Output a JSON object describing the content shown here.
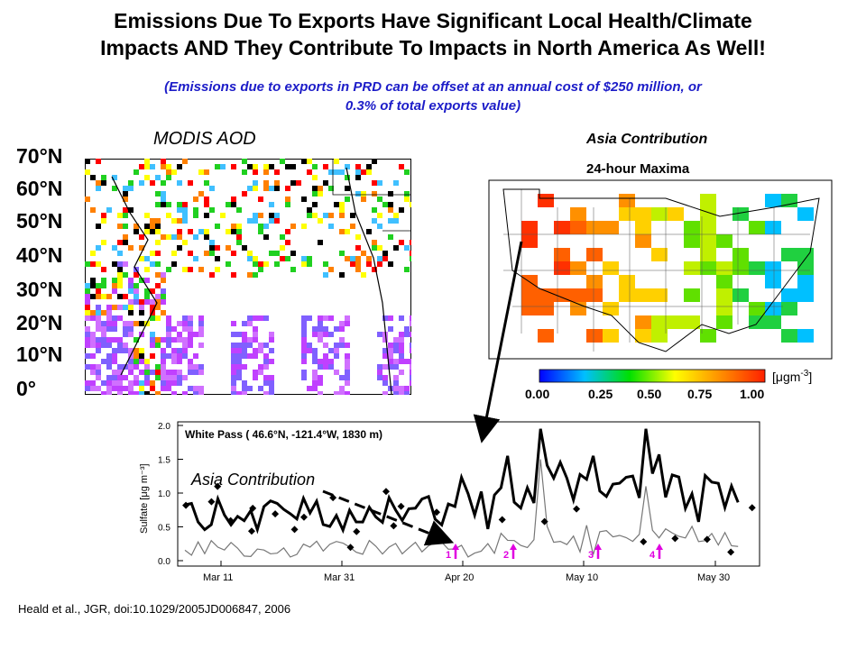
{
  "slide": {
    "title_line1": "Emissions Due To Exports Have Significant Local Health/Climate",
    "title_line2": "Impacts AND They  Contribute To Impacts in North America As Well!",
    "subtitle_line1": "(Emissions due to exports in PRD can be offset at an annual cost of $250 million, or",
    "subtitle_line2": "0.3% of total exports value)",
    "citation": "Heald et al., JGR, doi:10.1029/2005JD006847, 2006"
  },
  "modis_panel": {
    "label": "MODIS AOD",
    "latitude_labels": [
      "70°N",
      "60°N",
      "50°N",
      "40°N",
      "30°N",
      "20°N",
      "10°N",
      "0°"
    ]
  },
  "us_map_panel": {
    "label": "Asia Contribution",
    "map_title": "24-hour Maxima",
    "colorbar_ticks": [
      "0.00",
      "0.25",
      "0.50",
      "0.75",
      "1.00"
    ],
    "unit_prefix": "[",
    "unit_text": "μgm",
    "unit_exponent": "-3",
    "unit_suffix": "]",
    "colors": {
      "low": "#0000ff",
      "mid": "#00e000",
      "high": "#ff2000"
    }
  },
  "timeseries_panel": {
    "header": "White Pass ( 46.6°N, -121.4°W,  1830 m)",
    "annotation": "Asia Contribution",
    "ylabel": "Sulfate [μg m⁻³]",
    "y_ticks": [
      "0.0",
      "0.5",
      "1.0",
      "1.5",
      "2.0"
    ],
    "x_ticks": [
      "Mar 11",
      "Mar 31",
      "Apr 20",
      "May 10",
      "May 30"
    ],
    "event_markers": [
      "1",
      "2",
      "3",
      "4"
    ],
    "colors": {
      "event": "#e000e0"
    }
  }
}
